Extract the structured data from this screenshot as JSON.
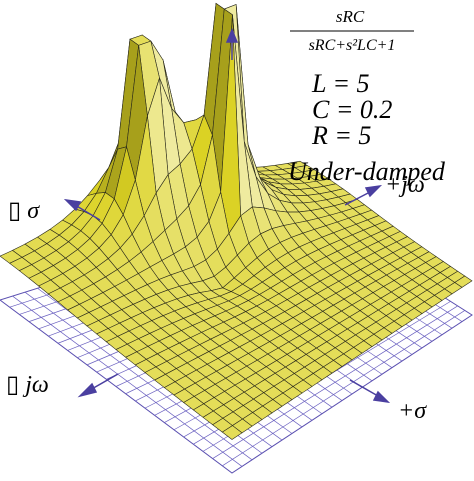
{
  "formula": {
    "numerator": "sRC",
    "denominator": "sRC+s²LC+1"
  },
  "parameters": [
    "L = 5",
    "C = 0.2",
    "R = 5"
  ],
  "condition": "Under-damped",
  "axes": {
    "minus_sigma": "▯ σ",
    "plus_jw": "+jω",
    "minus_jw": "▯ jω",
    "plus_sigma": "+σ"
  }
}
